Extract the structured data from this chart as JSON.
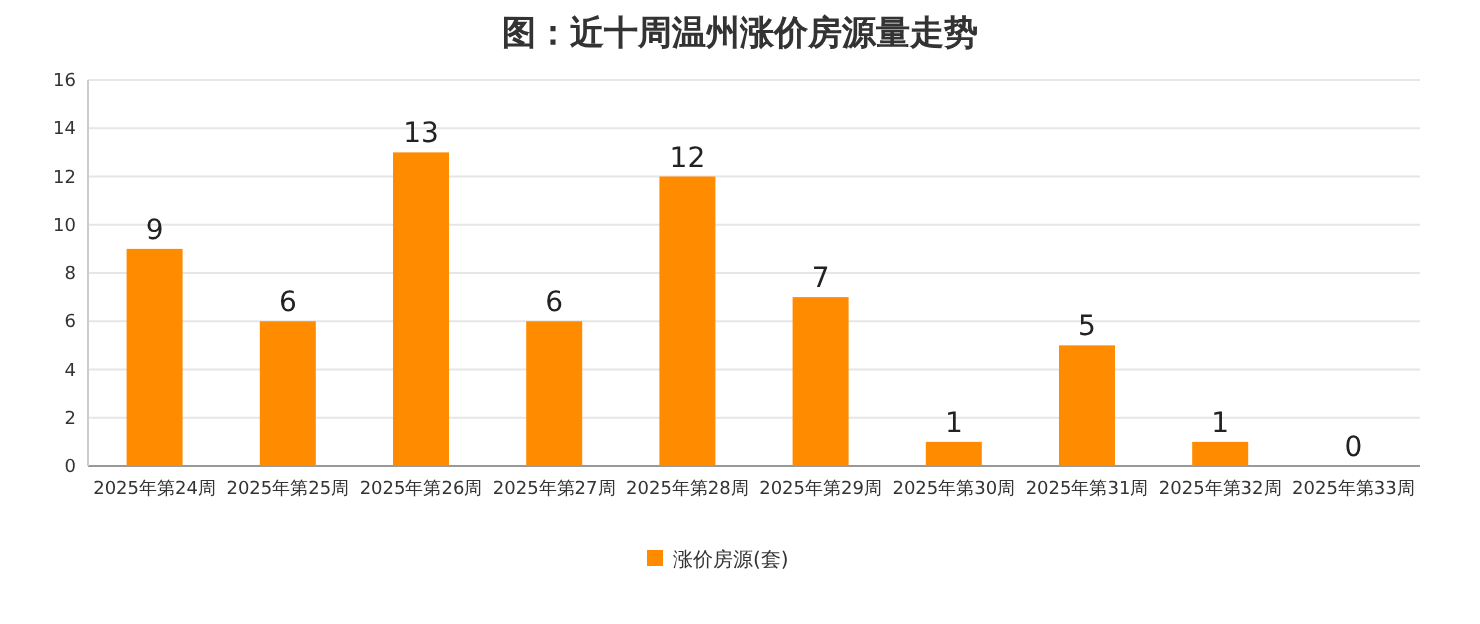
{
  "chart_data": {
    "type": "bar",
    "title": "图：近十周温州涨价房源量走势",
    "categories": [
      "2025年第24周",
      "2025年第25周",
      "2025年第26周",
      "2025年第27周",
      "2025年第28周",
      "2025年第29周",
      "2025年第30周",
      "2025年第31周",
      "2025年第32周",
      "2025年第33周"
    ],
    "series": [
      {
        "name": "涨价房源(套)",
        "color": "#ff8c00",
        "values": [
          9,
          6,
          13,
          6,
          12,
          7,
          1,
          5,
          1,
          0
        ]
      }
    ],
    "ylim": [
      0,
      16
    ],
    "yticks": [
      0,
      2,
      4,
      6,
      8,
      10,
      12,
      14,
      16
    ],
    "grid": "y",
    "legend": "bottom",
    "data_labels": true
  }
}
